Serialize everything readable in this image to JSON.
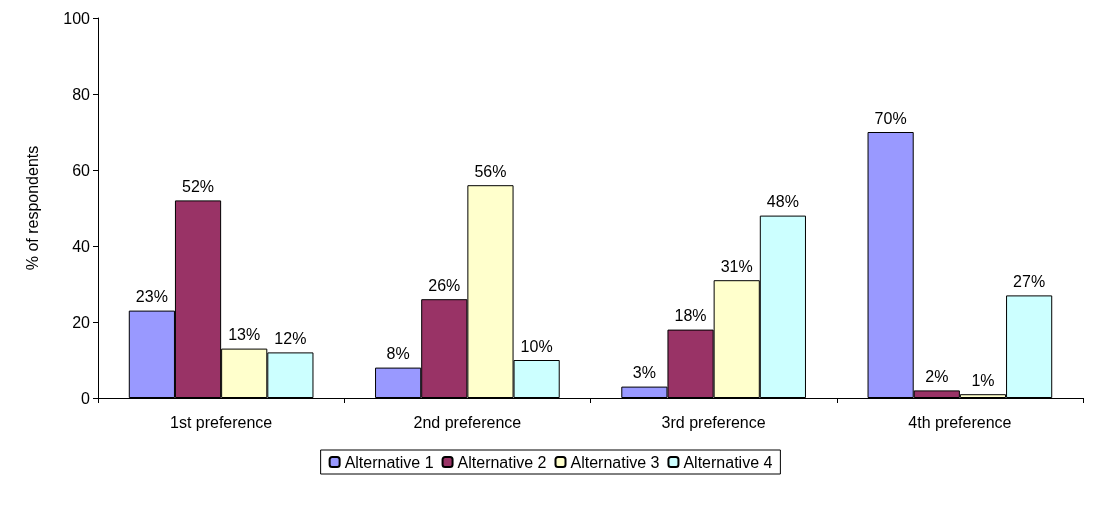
{
  "chart_data": {
    "type": "bar",
    "ylabel": "% of respondents",
    "categories": [
      "1st preference",
      "2nd preference",
      "3rd preference",
      "4th preference"
    ],
    "series": [
      {
        "name": "Alternative 1",
        "color": "#9999ff",
        "values": [
          23,
          8,
          3,
          70
        ],
        "value_labels": [
          "23%",
          "8%",
          "3%",
          "70%"
        ]
      },
      {
        "name": "Alternative 2",
        "color": "#993366",
        "values": [
          52,
          26,
          18,
          2
        ],
        "value_labels": [
          "52%",
          "26%",
          "18%",
          "2%"
        ]
      },
      {
        "name": "Alternative 3",
        "color": "#ffffcc",
        "values": [
          13,
          56,
          31,
          1
        ],
        "value_labels": [
          "13%",
          "56%",
          "31%",
          "1%"
        ]
      },
      {
        "name": "Alternative 4",
        "color": "#ccffff",
        "values": [
          12,
          10,
          48,
          27
        ],
        "value_labels": [
          "12%",
          "10%",
          "48%",
          "27%"
        ]
      }
    ],
    "ylim": [
      0,
      100
    ],
    "yticks": [
      0,
      20,
      40,
      60,
      80,
      100
    ],
    "grid": false,
    "legend": "bottom"
  }
}
